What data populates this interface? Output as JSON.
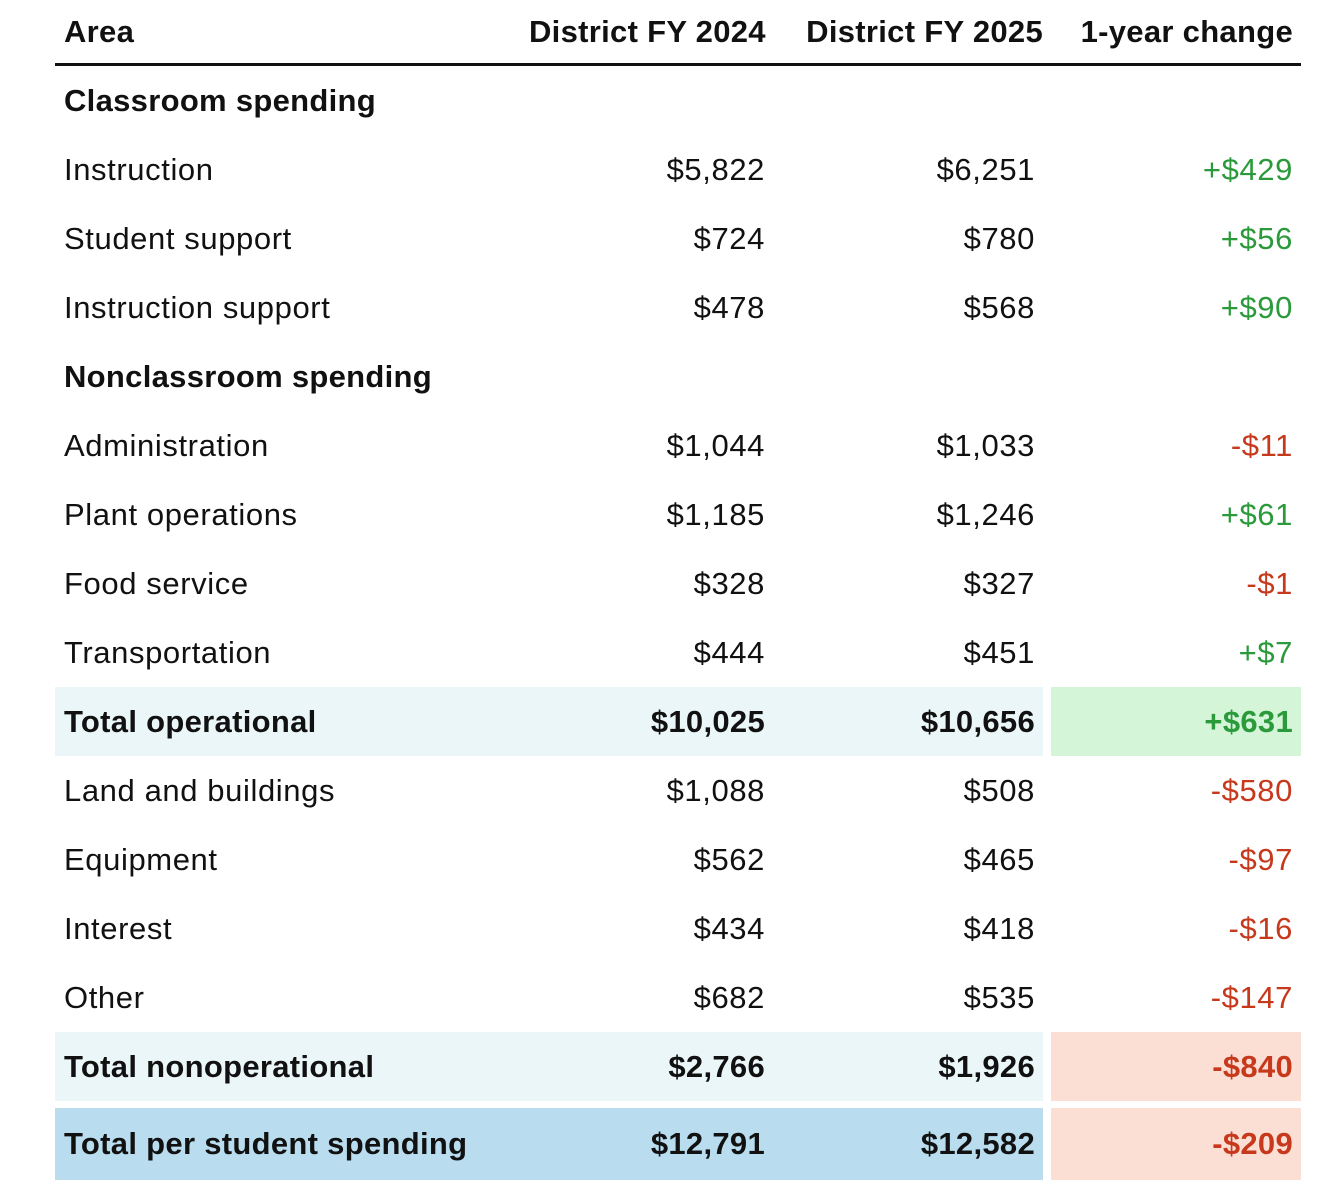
{
  "headers": {
    "area": "Area",
    "fy2024": "District FY 2024",
    "fy2025": "District FY 2025",
    "change": "1-year change"
  },
  "colors": {
    "positive_text": "#2a9a3a",
    "negative_text": "#c7391c",
    "positive_fill": "#d4f5d8",
    "negative_fill": "#fbdfd4",
    "subtotal_fill": "#ebf6f9",
    "grand_total_fill": "#b9ddef"
  },
  "sections": {
    "classroom": "Classroom spending",
    "nonclassroom": "Nonclassroom spending"
  },
  "rows": [
    {
      "area": "Instruction",
      "fy2024": "$5,822",
      "fy2025": "$6,251",
      "change": "+$429"
    },
    {
      "area": "Student support",
      "fy2024": "$724",
      "fy2025": "$780",
      "change": "+$56"
    },
    {
      "area": "Instruction support",
      "fy2024": "$478",
      "fy2025": "$568",
      "change": "+$90"
    },
    {
      "area": "Administration",
      "fy2024": "$1,044",
      "fy2025": "$1,033",
      "change": "-$11"
    },
    {
      "area": "Plant operations",
      "fy2024": "$1,185",
      "fy2025": "$1,246",
      "change": "+$61"
    },
    {
      "area": "Food service",
      "fy2024": "$328",
      "fy2025": "$327",
      "change": "-$1"
    },
    {
      "area": "Transportation",
      "fy2024": "$444",
      "fy2025": "$451",
      "change": "+$7"
    },
    {
      "area": "Land and buildings",
      "fy2024": "$1,088",
      "fy2025": "$508",
      "change": "-$580"
    },
    {
      "area": "Equipment",
      "fy2024": "$562",
      "fy2025": "$465",
      "change": "-$97"
    },
    {
      "area": "Interest",
      "fy2024": "$434",
      "fy2025": "$418",
      "change": "-$16"
    },
    {
      "area": "Other",
      "fy2024": "$682",
      "fy2025": "$535",
      "change": "-$147"
    }
  ],
  "totals": {
    "operational": {
      "area": "Total operational",
      "fy2024": "$10,025",
      "fy2025": "$10,656",
      "change": "+$631"
    },
    "nonoperational": {
      "area": "Total nonoperational",
      "fy2024": "$2,766",
      "fy2025": "$1,926",
      "change": "-$840"
    },
    "per_student": {
      "area": "Total per student spending",
      "fy2024": "$12,791",
      "fy2025": "$12,582",
      "change": "-$209"
    }
  }
}
